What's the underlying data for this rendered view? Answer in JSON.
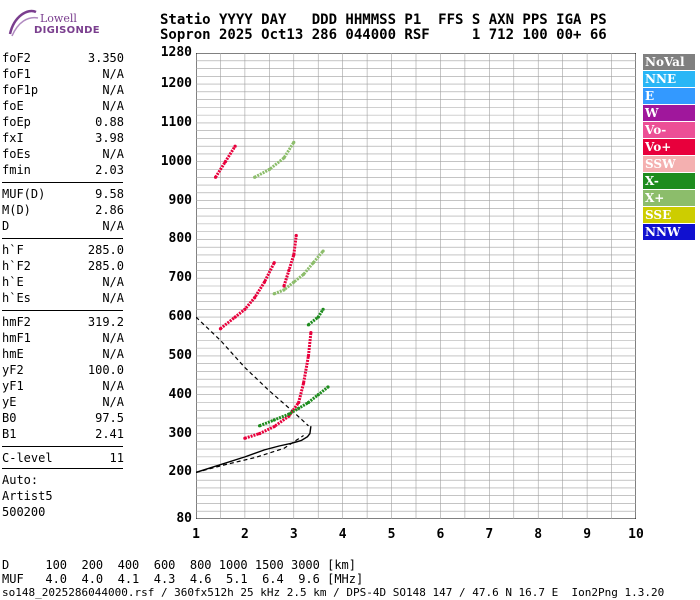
{
  "logo": {
    "line1": "Lowell",
    "line2": "DIGISONDE"
  },
  "header": {
    "line1": "Statio YYYY DAY   DDD HHMMSS P1  FFS S AXN PPS IGA PS",
    "line2": "Sopron 2025 Oct13 286 044000 RSF     1 712 100 00+ 66"
  },
  "params": {
    "group1": [
      {
        "label": "foF2",
        "value": "3.350"
      },
      {
        "label": "foF1",
        "value": "N/A"
      },
      {
        "label": "foF1p",
        "value": "N/A"
      },
      {
        "label": "foE",
        "value": "N/A"
      },
      {
        "label": "foEp",
        "value": "0.88"
      },
      {
        "label": "fxI",
        "value": "3.98"
      },
      {
        "label": "foEs",
        "value": "N/A"
      },
      {
        "label": "fmin",
        "value": "2.03"
      }
    ],
    "group2": [
      {
        "label": "MUF(D)",
        "value": "9.58"
      },
      {
        "label": "M(D)",
        "value": "2.86"
      },
      {
        "label": "D",
        "value": "N/A"
      }
    ],
    "group3": [
      {
        "label": "h`F",
        "value": "285.0"
      },
      {
        "label": "h`F2",
        "value": "285.0"
      },
      {
        "label": "h`E",
        "value": "N/A"
      },
      {
        "label": "h`Es",
        "value": "N/A"
      }
    ],
    "group4": [
      {
        "label": "hmF2",
        "value": "319.2"
      },
      {
        "label": "hmF1",
        "value": "N/A"
      },
      {
        "label": "hmE",
        "value": "N/A"
      },
      {
        "label": "yF2",
        "value": "100.0"
      },
      {
        "label": "yF1",
        "value": "N/A"
      },
      {
        "label": "yE",
        "value": "N/A"
      },
      {
        "label": "B0",
        "value": "97.5"
      },
      {
        "label": "B1",
        "value": "2.41"
      }
    ],
    "group5": [
      {
        "label": "C-level",
        "value": "11"
      }
    ]
  },
  "auto": {
    "line1": "Auto:",
    "line2": "Artist5",
    "line3": "500200"
  },
  "legend": [
    {
      "label": "NoVal",
      "color": "#808080"
    },
    {
      "label": "NNE",
      "color": "#29b6f6"
    },
    {
      "label": "E",
      "color": "#3399ff"
    },
    {
      "label": "W",
      "color": "#a0179c"
    },
    {
      "label": "Vo-",
      "color": "#ec4f96"
    },
    {
      "label": "Vo+",
      "color": "#e8003c"
    },
    {
      "label": "SSW",
      "color": "#f4b0b0"
    },
    {
      "label": "X-",
      "color": "#1e8c1e"
    },
    {
      "label": "X+",
      "color": "#8cbd6b"
    },
    {
      "label": "SSE",
      "color": "#cdcd00"
    },
    {
      "label": "NNW",
      "color": "#1010d0"
    }
  ],
  "muf_table": {
    "line1": "D     100  200  400  600  800 1000 1500 3000 [km]",
    "line2": "MUF   4.0  4.0  4.1  4.3  4.6  5.1  6.4  9.6 [MHz]"
  },
  "footer": "so148_2025286044000.rsf / 360fx512h 25 kHz 2.5 km / DPS-4D SO148 147 / 47.6 N 16.7 E  Ion2Png 1.3.20",
  "chart_data": {
    "type": "scatter",
    "xlabel": "",
    "ylabel": "",
    "xlim": [
      1,
      10
    ],
    "ylim": [
      80,
      1280
    ],
    "x_ticks": [
      1,
      2,
      3,
      4,
      5,
      6,
      7,
      8,
      9,
      10
    ],
    "y_ticks": [
      200,
      300,
      400,
      500,
      600,
      700,
      800,
      900,
      1000,
      1100,
      1200,
      1280
    ],
    "y_minor_ticks": [
      80
    ],
    "grid": true,
    "profile_curve": {
      "x": [
        3.35,
        3.33,
        3.28,
        3.15,
        2.95,
        2.7,
        2.4,
        2.0,
        1.0
      ],
      "y": [
        319,
        300,
        292,
        282,
        275,
        268,
        258,
        240,
        200
      ]
    },
    "dashed_curves": [
      {
        "x": [
          1.0,
          1.5,
          2.0,
          2.5,
          3.0,
          3.3
        ],
        "y": [
          600,
          540,
          470,
          410,
          355,
          320
        ]
      },
      {
        "x": [
          1.0,
          1.6,
          2.2,
          2.8,
          3.2
        ],
        "y": [
          200,
          220,
          238,
          262,
          295
        ]
      }
    ],
    "traces": [
      {
        "name": "",
        "color": "#e8003c",
        "x": [
          2.0,
          2.3,
          2.6,
          2.9,
          3.1,
          3.2,
          3.3,
          3.35
        ],
        "y": [
          288,
          300,
          318,
          345,
          380,
          430,
          500,
          560
        ]
      },
      {
        "name": "",
        "color": "#1e8c1e",
        "x": [
          2.3,
          2.6,
          2.9,
          3.1,
          3.3,
          3.5,
          3.7
        ],
        "y": [
          320,
          335,
          350,
          365,
          380,
          400,
          420
        ]
      },
      {
        "name": "",
        "color": "#e8003c",
        "x": [
          1.5,
          1.8,
          2.0,
          2.2,
          2.4,
          2.6
        ],
        "y": [
          570,
          600,
          620,
          650,
          690,
          740
        ]
      },
      {
        "name": "",
        "color": "#8cbd6b",
        "x": [
          2.6,
          2.8,
          3.0,
          3.2,
          3.4,
          3.6
        ],
        "y": [
          660,
          670,
          690,
          710,
          740,
          770
        ]
      },
      {
        "name": "",
        "color": "#e8003c",
        "x": [
          2.8,
          2.9,
          3.0,
          3.05
        ],
        "y": [
          680,
          720,
          760,
          810
        ]
      },
      {
        "name": "",
        "color": "#1e8c1e",
        "x": [
          3.3,
          3.5,
          3.6
        ],
        "y": [
          580,
          600,
          620
        ]
      },
      {
        "name": "",
        "color": "#8cbd6b",
        "x": [
          2.2,
          2.5,
          2.8,
          3.0
        ],
        "y": [
          960,
          980,
          1010,
          1050
        ]
      },
      {
        "name": "",
        "color": "#e8003c",
        "x": [
          1.4,
          1.6,
          1.8
        ],
        "y": [
          960,
          1000,
          1040
        ]
      }
    ]
  }
}
